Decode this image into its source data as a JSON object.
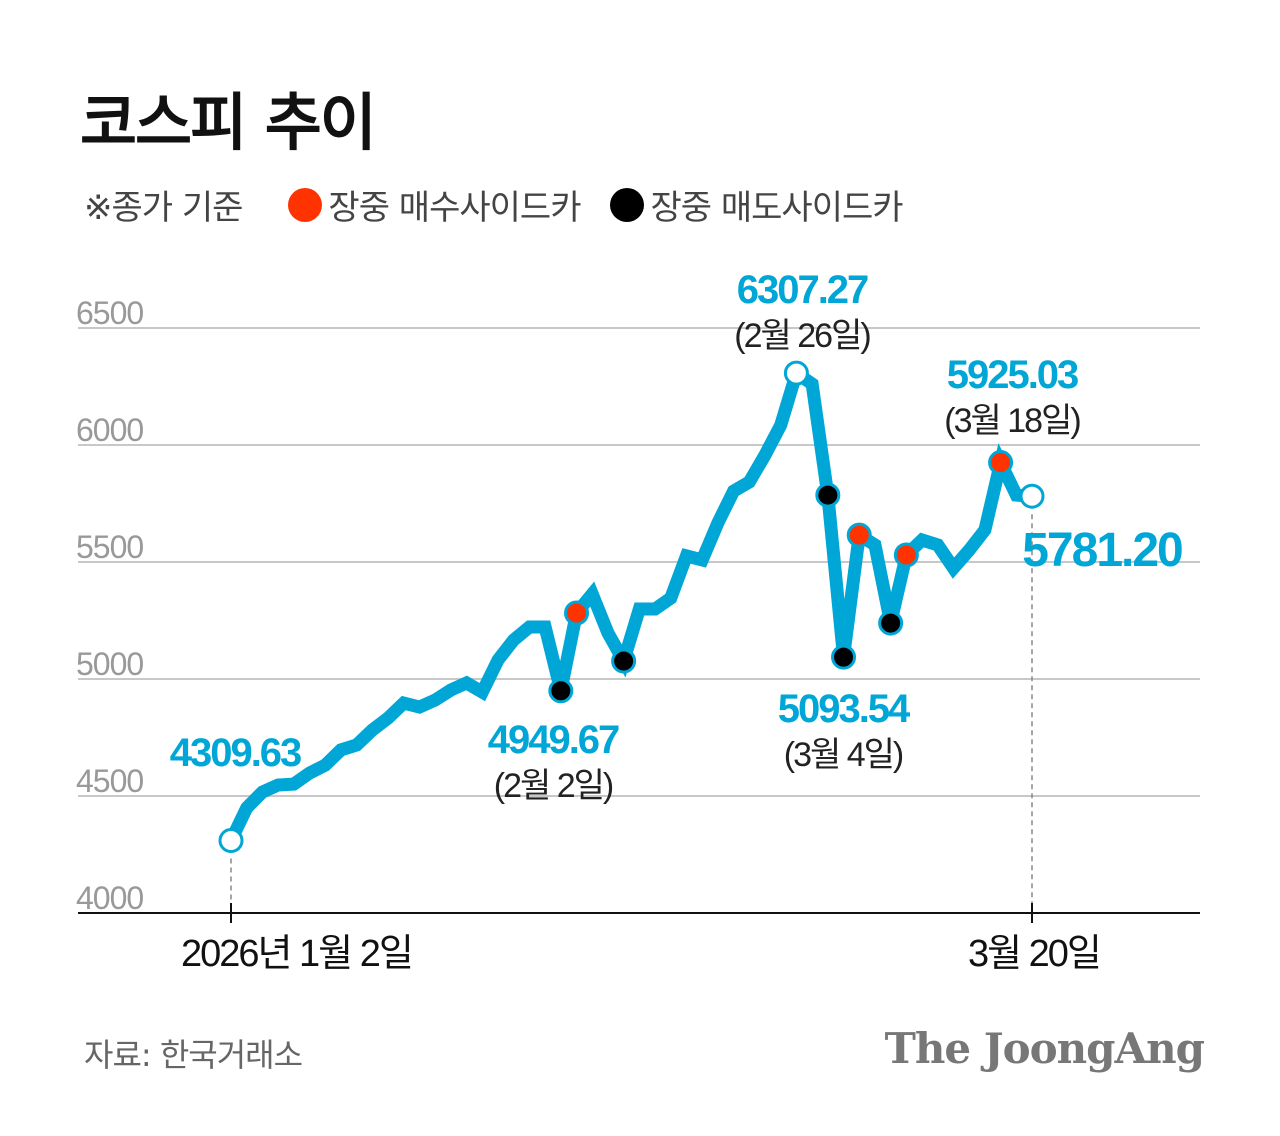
{
  "title": "코스피 추이",
  "note": "※종가 기준",
  "legend": [
    {
      "label": "장중 매수사이드카",
      "color": "#ff3300"
    },
    {
      "label": "장중 매도사이드카",
      "color": "#000000"
    }
  ],
  "source": "자료: 한국거래소",
  "logo": "The JoongAng",
  "chart_data": {
    "type": "line",
    "title": "코스피 추이",
    "ylim": [
      4000,
      6500
    ],
    "yticks": [
      "4000",
      "4500",
      "5000",
      "5500",
      "6000",
      "6500"
    ],
    "xtick_labels": [
      {
        "index": 0,
        "label": "2026년 1월 2일"
      },
      {
        "index": 51,
        "label": "3월 20일"
      }
    ],
    "grid": true,
    "line_color": "#00a6d6",
    "values": [
      4309.63,
      4449,
      4517,
      4547,
      4551,
      4598,
      4632,
      4697,
      4718,
      4782,
      4833,
      4897,
      4880,
      4910,
      4953,
      4983,
      4944,
      5081,
      5167,
      5222,
      5222,
      4949.67,
      5282,
      5363,
      5197,
      5077,
      5299,
      5299,
      5346,
      5526,
      5509,
      5667,
      5803,
      5842,
      5957,
      6085,
      6307.27,
      6261,
      5786,
      5093.54,
      5615,
      5573,
      5239,
      5530,
      5594,
      5573,
      5474,
      5551,
      5637,
      5925.03,
      5786,
      5781.2
    ],
    "buy_sidecar_indices": [
      22,
      40,
      43,
      49
    ],
    "sell_sidecar_indices": [
      21,
      25,
      38,
      39,
      42
    ],
    "open_marker_indices": [
      0,
      36,
      51
    ],
    "annotations": [
      {
        "index": 0,
        "value": "4309.63",
        "date": ""
      },
      {
        "index": 21,
        "value": "4949.67",
        "date": "(2월 2일)"
      },
      {
        "index": 36,
        "value": "6307.27",
        "date": "(2월 26일)"
      },
      {
        "index": 39,
        "value": "5093.54",
        "date": "(3월 4일)"
      },
      {
        "index": 49,
        "value": "5925.03",
        "date": "(3월 18일)"
      },
      {
        "index": 51,
        "value": "5781.20",
        "date": ""
      }
    ]
  }
}
